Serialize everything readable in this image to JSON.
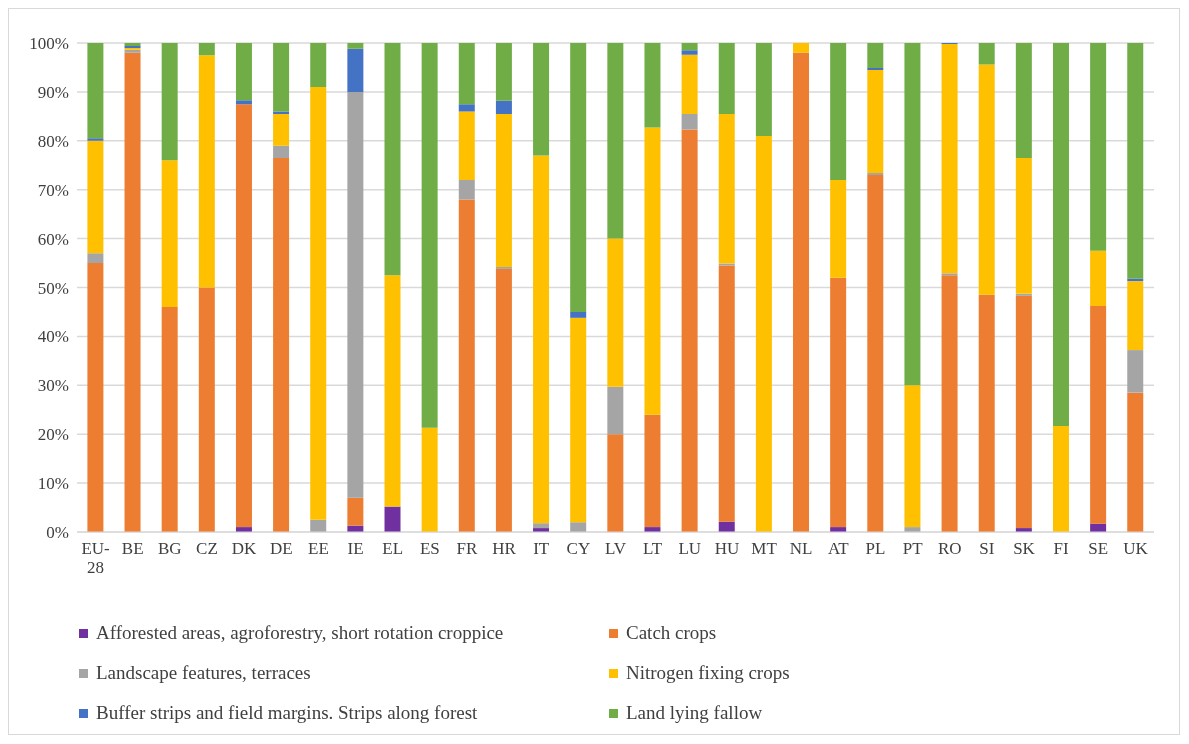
{
  "chart_data": {
    "type": "bar",
    "stacked": true,
    "categories": [
      "EU-28",
      "BE",
      "BG",
      "CZ",
      "DK",
      "DE",
      "EE",
      "IE",
      "EL",
      "ES",
      "FR",
      "HR",
      "IT",
      "CY",
      "LV",
      "LT",
      "LU",
      "HU",
      "MT",
      "NL",
      "AT",
      "PL",
      "PT",
      "RO",
      "SI",
      "SK",
      "FI",
      "SE",
      "UK"
    ],
    "series": [
      {
        "name": "Afforested areas, agroforestry, short rotation croppice",
        "color": "#7030a0",
        "values": [
          0,
          0,
          0,
          0,
          1,
          0,
          0,
          1.3,
          5.2,
          0,
          0,
          0,
          0.8,
          0,
          0,
          1,
          0,
          2.1,
          0,
          0,
          1,
          0,
          0,
          0,
          0,
          0.8,
          0,
          1.7,
          0
        ]
      },
      {
        "name": "Catch crops",
        "color": "#ed7d31",
        "values": [
          55,
          98,
          46,
          50,
          86.5,
          76.5,
          0,
          5.7,
          0,
          0,
          68,
          53.8,
          0,
          0,
          20,
          23,
          82.3,
          52.4,
          0,
          98,
          51,
          73,
          0,
          52.5,
          48.5,
          47.5,
          0,
          44.5,
          28.5
        ]
      },
      {
        "name": "Landscape features, terraces",
        "color": "#a5a5a5",
        "values": [
          2,
          0.6,
          0,
          0,
          0,
          2.5,
          2.5,
          83,
          0,
          0,
          4,
          0.4,
          1,
          2,
          9.7,
          0,
          3.2,
          0.4,
          0,
          0,
          0,
          0.4,
          1,
          0.4,
          0,
          0.4,
          0,
          0,
          8.7
        ]
      },
      {
        "name": "Nitrogen fixing crops",
        "color": "#ffc000",
        "values": [
          23,
          0.4,
          30,
          47.5,
          0,
          6.5,
          88.5,
          0,
          47.3,
          21.3,
          14,
          31.3,
          75.2,
          41.8,
          30.3,
          58.7,
          12.1,
          30.6,
          81,
          2,
          20,
          21.1,
          29,
          46.9,
          47.1,
          27.8,
          21.7,
          11.3,
          14.1
        ]
      },
      {
        "name": "Buffer strips and field margins. Strips along forest",
        "color": "#4472c4",
        "values": [
          0.5,
          0.4,
          0,
          0,
          0.8,
          0.5,
          0,
          8.8,
          0,
          0,
          1.5,
          2.7,
          0,
          1.2,
          0,
          0,
          0.9,
          0,
          0,
          0,
          0,
          0.4,
          0,
          0.2,
          0,
          0,
          0,
          0,
          0.5
        ]
      },
      {
        "name": "Land lying fallow",
        "color": "#70ad47",
        "values": [
          19.5,
          0.6,
          24,
          2.5,
          11.7,
          14,
          9,
          1.2,
          47.5,
          78.7,
          12.5,
          11.8,
          23,
          55,
          40,
          17.3,
          1.5,
          14.5,
          19,
          0,
          28,
          5.1,
          70,
          0,
          4.4,
          23.5,
          78.3,
          42.5,
          48.2
        ]
      }
    ],
    "ylim": [
      0,
      100
    ],
    "yticks": [
      {
        "value": 0,
        "label": "0%"
      },
      {
        "value": 10,
        "label": "10%"
      },
      {
        "value": 20,
        "label": "20%"
      },
      {
        "value": 30,
        "label": "30%"
      },
      {
        "value": 40,
        "label": "40%"
      },
      {
        "value": 50,
        "label": "50%"
      },
      {
        "value": 60,
        "label": "60%"
      },
      {
        "value": 70,
        "label": "70%"
      },
      {
        "value": 80,
        "label": "80%"
      },
      {
        "value": 90,
        "label": "90%"
      },
      {
        "value": 100,
        "label": "100%"
      }
    ],
    "grid": "y",
    "legend": "bottom"
  }
}
